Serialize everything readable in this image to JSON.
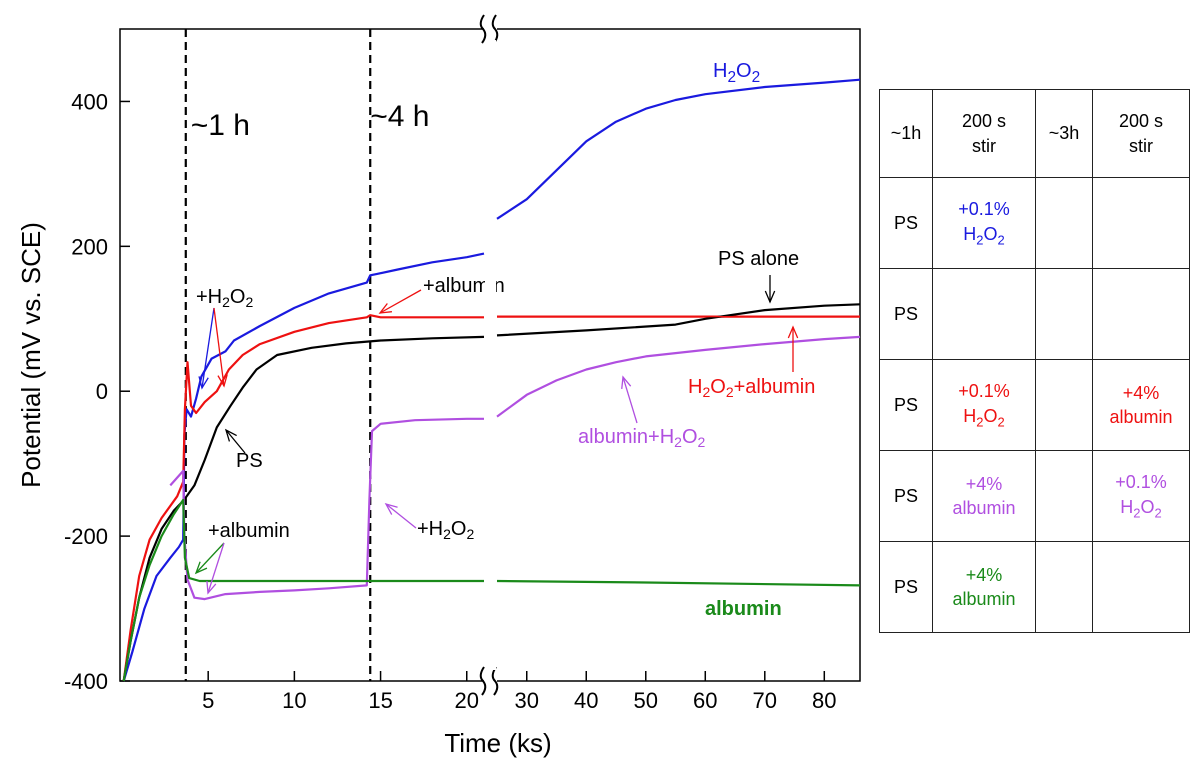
{
  "chart_data": {
    "type": "line",
    "xlabel": "Time (ks)",
    "ylabel": "Potential (mV vs. SCE)",
    "ylim": [
      -400,
      500
    ],
    "yticks": [
      -400,
      -200,
      0,
      200,
      400
    ],
    "x_segments": [
      {
        "range": [
          0,
          21
        ],
        "ticks": [
          5,
          10,
          15,
          20
        ]
      },
      {
        "range": [
          25,
          86
        ],
        "ticks": [
          30,
          40,
          50,
          60,
          70,
          80
        ]
      }
    ],
    "markers": [
      {
        "x": 3.7,
        "label": "~1 h"
      },
      {
        "x": 14.4,
        "label": "~4 h"
      }
    ],
    "series": [
      {
        "name": "H2O2",
        "color": "#1a1adf",
        "label_sub": {
          "pre": "H",
          "sub1": "2",
          "mid": "O",
          "sub2": "2"
        },
        "points": [
          [
            0.1,
            -400
          ],
          [
            0.6,
            -360
          ],
          [
            1.3,
            -300
          ],
          [
            2.0,
            -255
          ],
          [
            2.8,
            -230
          ],
          [
            3.3,
            -215
          ],
          [
            3.55,
            -205
          ],
          [
            3.62,
            -60
          ],
          [
            3.75,
            -25
          ],
          [
            4.0,
            -35
          ],
          [
            4.3,
            -10
          ],
          [
            4.6,
            20
          ],
          [
            5.2,
            45
          ],
          [
            6.0,
            55
          ],
          [
            6.5,
            70
          ],
          [
            8,
            90
          ],
          [
            10,
            115
          ],
          [
            12,
            135
          ],
          [
            14.2,
            150
          ],
          [
            14.4,
            160
          ],
          [
            14.8,
            162
          ],
          [
            16,
            168
          ],
          [
            18,
            178
          ],
          [
            20,
            185
          ],
          [
            21,
            190
          ],
          [
            25,
            238
          ],
          [
            30,
            265
          ],
          [
            35,
            305
          ],
          [
            40,
            345
          ],
          [
            45,
            372
          ],
          [
            50,
            390
          ],
          [
            55,
            402
          ],
          [
            60,
            410
          ],
          [
            70,
            420
          ],
          [
            80,
            426
          ],
          [
            86,
            430
          ]
        ]
      },
      {
        "name": "H2O2+albumin",
        "color": "#ee1111",
        "points": [
          [
            0.1,
            -400
          ],
          [
            0.5,
            -330
          ],
          [
            1.0,
            -255
          ],
          [
            1.6,
            -205
          ],
          [
            2.3,
            -175
          ],
          [
            3.2,
            -145
          ],
          [
            3.55,
            -125
          ],
          [
            3.65,
            -25
          ],
          [
            3.8,
            40
          ],
          [
            4.0,
            -20
          ],
          [
            4.3,
            -30
          ],
          [
            4.8,
            -15
          ],
          [
            5.5,
            0
          ],
          [
            6.2,
            30
          ],
          [
            7,
            50
          ],
          [
            8,
            65
          ],
          [
            10,
            82
          ],
          [
            12,
            94
          ],
          [
            14.2,
            102
          ],
          [
            14.4,
            105
          ],
          [
            15,
            102
          ],
          [
            21,
            102
          ],
          [
            25,
            103
          ],
          [
            40,
            103
          ],
          [
            60,
            103
          ],
          [
            86,
            103
          ]
        ]
      },
      {
        "name": "PS alone",
        "color": "#000000",
        "points": [
          [
            0.1,
            -400
          ],
          [
            0.5,
            -345
          ],
          [
            1.0,
            -285
          ],
          [
            1.6,
            -230
          ],
          [
            2.3,
            -190
          ],
          [
            3.0,
            -165
          ],
          [
            3.6,
            -150
          ],
          [
            4.2,
            -130
          ],
          [
            4.8,
            -95
          ],
          [
            5.5,
            -50
          ],
          [
            6.3,
            -20
          ],
          [
            7,
            5
          ],
          [
            7.8,
            30
          ],
          [
            9,
            50
          ],
          [
            11,
            60
          ],
          [
            13,
            66
          ],
          [
            15,
            70
          ],
          [
            18,
            73
          ],
          [
            21,
            75
          ],
          [
            25,
            77
          ],
          [
            40,
            84
          ],
          [
            55,
            92
          ],
          [
            60,
            100
          ],
          [
            70,
            112
          ],
          [
            80,
            118
          ],
          [
            86,
            120
          ]
        ]
      },
      {
        "name": "albumin+H2O2",
        "color": "#b04fe0",
        "points": [
          [
            2.8,
            -130
          ],
          [
            3.55,
            -110
          ],
          [
            3.62,
            -200
          ],
          [
            3.8,
            -260
          ],
          [
            4.2,
            -285
          ],
          [
            4.8,
            -287
          ],
          [
            6,
            -280
          ],
          [
            8,
            -277
          ],
          [
            10,
            -275
          ],
          [
            12,
            -272
          ],
          [
            14.2,
            -268
          ],
          [
            14.35,
            -150
          ],
          [
            14.5,
            -55
          ],
          [
            15,
            -45
          ],
          [
            17,
            -40
          ],
          [
            20,
            -38
          ],
          [
            21,
            -38
          ],
          [
            25,
            -35
          ],
          [
            30,
            -5
          ],
          [
            35,
            15
          ],
          [
            40,
            30
          ],
          [
            45,
            40
          ],
          [
            50,
            48
          ],
          [
            60,
            57
          ],
          [
            70,
            65
          ],
          [
            80,
            72
          ],
          [
            86,
            75
          ]
        ]
      },
      {
        "name": "albumin",
        "color": "#1a8a1a",
        "points": [
          [
            0.1,
            -400
          ],
          [
            0.5,
            -345
          ],
          [
            1.0,
            -285
          ],
          [
            1.6,
            -240
          ],
          [
            2.3,
            -200
          ],
          [
            3.0,
            -170
          ],
          [
            3.55,
            -150
          ],
          [
            3.65,
            -230
          ],
          [
            3.9,
            -258
          ],
          [
            4.5,
            -262
          ],
          [
            6,
            -262
          ],
          [
            10,
            -262
          ],
          [
            14,
            -262
          ],
          [
            21,
            -262
          ],
          [
            25,
            -262
          ],
          [
            50,
            -264
          ],
          [
            86,
            -268
          ]
        ]
      }
    ],
    "annotations": [
      {
        "parts": [
          {
            "t": "H"
          },
          {
            "t": "2",
            "sub": true
          },
          {
            "t": "O"
          },
          {
            "t": "2",
            "sub": true
          }
        ],
        "color": "#1a1adf"
      },
      {
        "parts": [
          {
            "t": "+H"
          },
          {
            "t": "2",
            "sub": true
          },
          {
            "t": "O"
          },
          {
            "t": "2",
            "sub": true
          }
        ],
        "color": "#000000"
      },
      {
        "parts": [
          {
            "t": "+albumin"
          }
        ],
        "color": "#000000"
      },
      {
        "parts": [
          {
            "t": "PS alone"
          }
        ],
        "color": "#000000"
      },
      {
        "parts": [
          {
            "t": "H"
          },
          {
            "t": "2",
            "sub": true
          },
          {
            "t": "O"
          },
          {
            "t": "2",
            "sub": true
          },
          {
            "t": "+albumin"
          }
        ],
        "color": "#ee1111"
      },
      {
        "parts": [
          {
            "t": "PS"
          }
        ],
        "color": "#000000"
      },
      {
        "parts": [
          {
            "t": "albumin+H"
          },
          {
            "t": "2",
            "sub": true
          },
          {
            "t": "O"
          },
          {
            "t": "2",
            "sub": true
          }
        ],
        "color": "#b04fe0"
      },
      {
        "parts": [
          {
            "t": "+albumin"
          }
        ],
        "color": "#000000"
      },
      {
        "parts": [
          {
            "t": "+H"
          },
          {
            "t": "2",
            "sub": true
          },
          {
            "t": "O"
          },
          {
            "t": "2",
            "sub": true
          }
        ],
        "color": "#000000"
      },
      {
        "parts": [
          {
            "t": "albumin"
          }
        ],
        "color": "#1a8a1a"
      }
    ]
  },
  "table": {
    "header": [
      "~1h",
      "200 s stir",
      "~3h",
      "200 s stir"
    ],
    "rows": [
      {
        "c0": "PS",
        "c1": {
          "l1": "+0.1%",
          "l2": "H2O2",
          "color": "#1a1adf"
        },
        "c3": null
      },
      {
        "c0": "PS",
        "c1": null,
        "c3": null
      },
      {
        "c0": "PS",
        "c1": {
          "l1": "+0.1%",
          "l2": "H2O2",
          "color": "#ee1111"
        },
        "c3": {
          "l1": "+4%",
          "l2": "albumin",
          "color": "#ee1111"
        }
      },
      {
        "c0": "PS",
        "c1": {
          "l1": "+4%",
          "l2": "albumin",
          "color": "#b04fe0"
        },
        "c3": {
          "l1": "+0.1%",
          "l2": "H2O2",
          "color": "#b04fe0"
        }
      },
      {
        "c0": "PS",
        "c1": {
          "l1": "+4%",
          "l2": "albumin",
          "color": "#1a8a1a"
        },
        "c3": null
      }
    ]
  }
}
